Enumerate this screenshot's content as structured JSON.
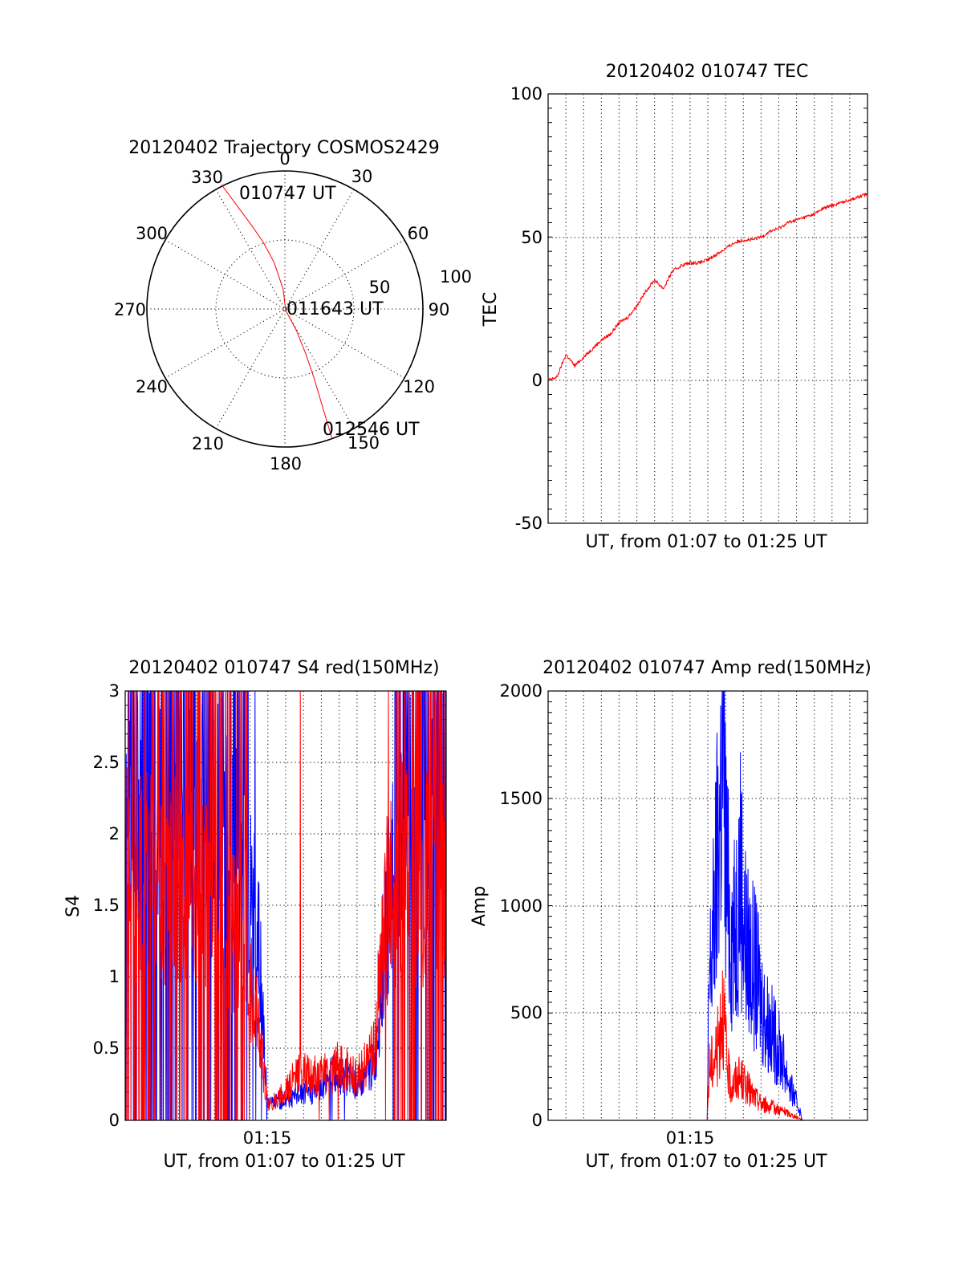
{
  "colors": {
    "red": "#ff0000",
    "blue": "#0000ff",
    "axis": "#000000",
    "background": "#ffffff"
  },
  "chart_data": [
    {
      "id": "polar",
      "type": "polar-trajectory",
      "title": "20120402 Trajectory COSMOS2429",
      "azimuth_labels": [
        "0",
        "30",
        "60",
        "90",
        "120",
        "150",
        "180",
        "210",
        "240",
        "270",
        "300",
        "330"
      ],
      "radial_labels": [
        "50",
        "100"
      ],
      "grid": true,
      "points": [
        {
          "label": "010747 UT",
          "azimuth": 333,
          "zenith": 91
        },
        {
          "label": "011643 UT",
          "azimuth": 150,
          "zenith": 1
        },
        {
          "label": "012546 UT",
          "azimuth": 160,
          "zenith": 90
        }
      ],
      "series": [
        {
          "color": "red",
          "azimuth": [
            333,
            335,
            338,
            342,
            347,
            355,
            150,
            152,
            155,
            157,
            159,
            160
          ],
          "zenith": [
            91,
            75,
            60,
            46,
            31,
            13,
            1,
            16,
            32,
            48,
            69,
            90
          ]
        }
      ]
    },
    {
      "id": "tec",
      "type": "line",
      "title": "20120402 010747 TEC",
      "xlabel": "UT, from 01:07 to 01:25 UT",
      "ylabel": "TEC",
      "xlim": [
        0,
        1080
      ],
      "ylim": [
        -50,
        100
      ],
      "yticks": [
        "100",
        "50",
        "0",
        "-50"
      ],
      "ytick_values": [
        100,
        50,
        0,
        -50
      ],
      "xticks": [],
      "grid": true,
      "series": [
        {
          "color": "red",
          "x": [
            0,
            30,
            60,
            90,
            120,
            150,
            180,
            210,
            240,
            270,
            300,
            330,
            360,
            390,
            420,
            450,
            480,
            510,
            540,
            570,
            600,
            630,
            660,
            690,
            720,
            750,
            780,
            810,
            840,
            870,
            900,
            930,
            960,
            990,
            1020,
            1050,
            1080
          ],
          "y": [
            0,
            1,
            9,
            5,
            8,
            11,
            14,
            16,
            20,
            22,
            26,
            31,
            35,
            32,
            38,
            40,
            41,
            41,
            42,
            44,
            46,
            48,
            49,
            49,
            50,
            52,
            53,
            55,
            56,
            57,
            58,
            60,
            61,
            62,
            63,
            64,
            65
          ]
        }
      ]
    },
    {
      "id": "s4",
      "type": "line",
      "title": "20120402 010747 S4 red(150MHz)",
      "xlabel": "UT, from 01:07 to 01:25 UT",
      "ylabel": "S4",
      "xlim": [
        0,
        1080
      ],
      "ylim": [
        0,
        3
      ],
      "yticks": [
        "3",
        "2.5",
        "2",
        "1.5",
        "1",
        "0.5",
        "0"
      ],
      "ytick_values": [
        3,
        2.5,
        2,
        1.5,
        1,
        0.5,
        0
      ],
      "xticks": [
        "01:15"
      ],
      "xtick_values": [
        480
      ],
      "grid": true,
      "series": [
        {
          "color": "blue",
          "x": [
            0,
            60,
            120,
            180,
            240,
            300,
            330,
            360,
            390,
            420,
            450,
            480,
            510,
            540,
            570,
            600,
            630,
            660,
            690,
            720,
            750,
            780,
            810,
            840,
            870,
            900,
            930,
            960,
            990,
            1020,
            1050,
            1080
          ],
          "y": [
            2.4,
            2.5,
            2.3,
            2.4,
            2.3,
            2.2,
            2.1,
            2.0,
            1.8,
            1.6,
            1.2,
            0.12,
            0.13,
            0.15,
            0.16,
            0.2,
            0.2,
            0.25,
            0.35,
            0.3,
            0.3,
            0.25,
            0.3,
            0.4,
            1.2,
            1.8,
            2.0,
            2.1,
            2.2,
            2.3,
            2.3,
            2.2
          ]
        },
        {
          "color": "red",
          "x": [
            0,
            60,
            120,
            180,
            240,
            300,
            330,
            360,
            390,
            420,
            450,
            480,
            510,
            540,
            570,
            600,
            630,
            660,
            690,
            720,
            750,
            780,
            810,
            840,
            870,
            900,
            930,
            960,
            990,
            1020,
            1050,
            1080
          ],
          "y": [
            1.7,
            1.8,
            1.6,
            1.7,
            1.6,
            1.5,
            1.5,
            1.3,
            1.2,
            1.0,
            0.6,
            0.1,
            0.15,
            0.2,
            0.3,
            0.35,
            0.3,
            0.35,
            0.3,
            0.4,
            0.35,
            0.3,
            0.4,
            0.5,
            1.4,
            1.6,
            1.8,
            1.7,
            1.6,
            1.7,
            1.8,
            1.6
          ]
        }
      ]
    },
    {
      "id": "amp",
      "type": "line",
      "title": "20120402 010747 Amp red(150MHz)",
      "xlabel": "UT, from 01:07 to 01:25 UT",
      "ylabel": "Amp",
      "xlim": [
        0,
        1080
      ],
      "ylim": [
        0,
        2000
      ],
      "yticks": [
        "2000",
        "1500",
        "1000",
        "500",
        "0"
      ],
      "ytick_values": [
        2000,
        1500,
        1000,
        500,
        0
      ],
      "xticks": [
        "01:15"
      ],
      "xtick_values": [
        480
      ],
      "grid": true,
      "series": [
        {
          "color": "blue",
          "x": [
            0,
            300,
            520,
            538,
            545,
            560,
            575,
            590,
            605,
            615,
            630,
            650,
            670,
            700,
            730,
            760,
            790,
            820,
            850,
            860,
            880,
            1080
          ],
          "y": [
            0,
            0,
            0,
            0,
            650,
            900,
            1300,
            1700,
            1100,
            900,
            850,
            1200,
            800,
            700,
            500,
            400,
            300,
            150,
            50,
            0,
            0,
            0
          ]
        },
        {
          "color": "red",
          "x": [
            0,
            300,
            520,
            538,
            545,
            560,
            575,
            590,
            605,
            620,
            640,
            660,
            690,
            720,
            760,
            800,
            830,
            850,
            860,
            1080
          ],
          "y": [
            0,
            0,
            0,
            0,
            250,
            280,
            350,
            560,
            250,
            150,
            200,
            180,
            120,
            80,
            60,
            40,
            20,
            10,
            0,
            0
          ]
        }
      ]
    }
  ]
}
